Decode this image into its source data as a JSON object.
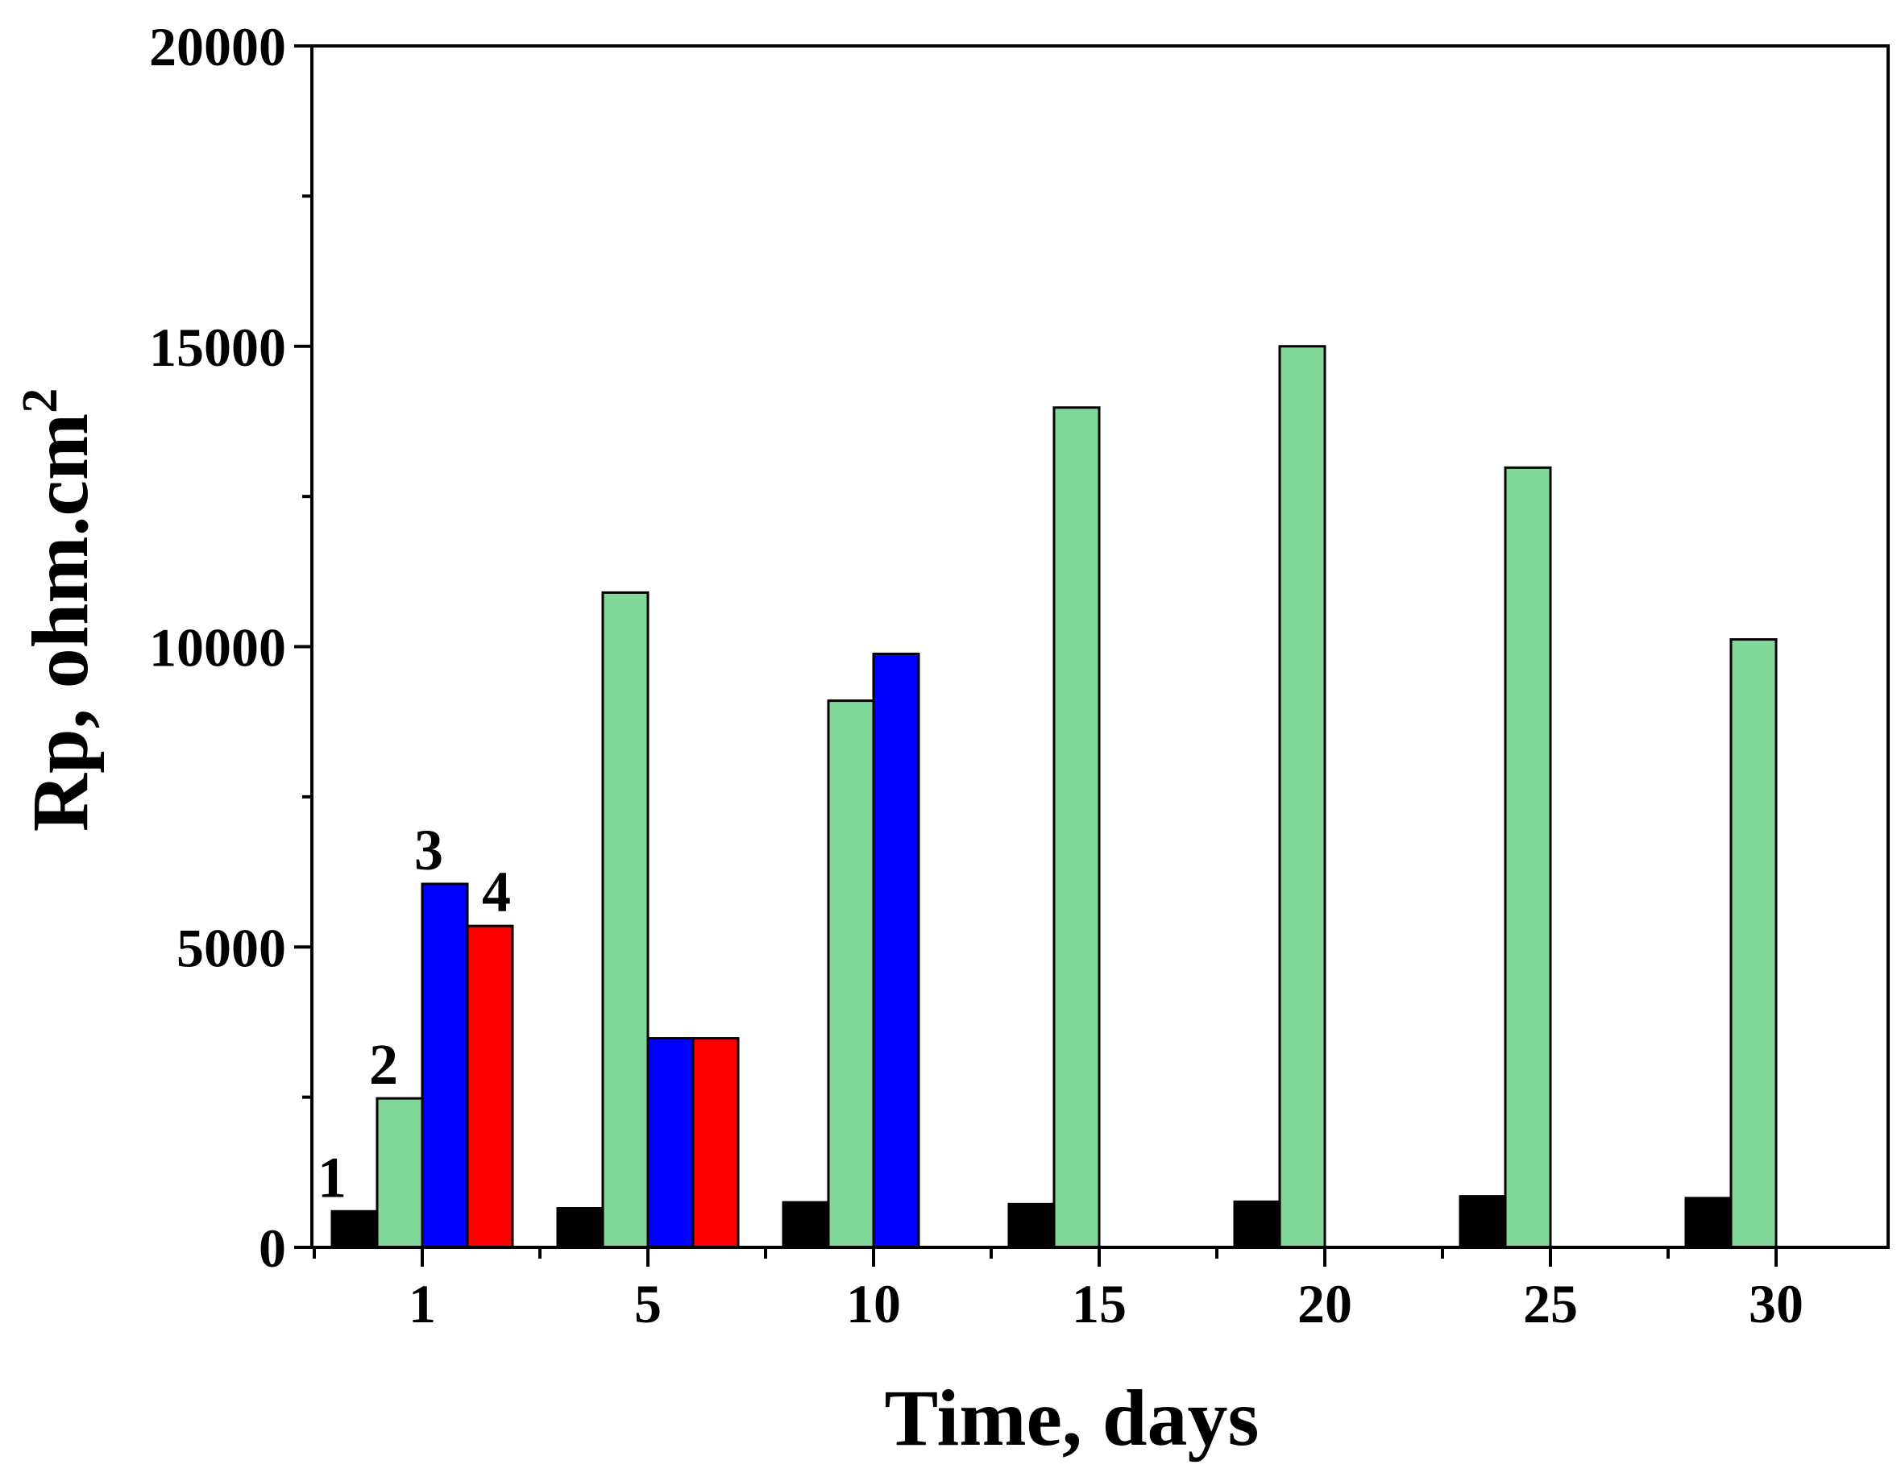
{
  "chart_data": {
    "type": "bar",
    "title": "",
    "xlabel": "Time, days",
    "ylabel": "Rp, ohm.cm",
    "ylabel_superscript": "2",
    "ylim": [
      0,
      20000
    ],
    "yticks": [
      "0",
      "5000",
      "10000",
      "15000",
      "20000"
    ],
    "categories": [
      "1",
      "5",
      "10",
      "15",
      "20",
      "25",
      "30"
    ],
    "series": [
      {
        "name": "1",
        "color": "#000000",
        "values": [
          600,
          650,
          750,
          720,
          760,
          850,
          820
        ]
      },
      {
        "name": "2",
        "color": "#80d99b",
        "values": [
          2480,
          10900,
          9100,
          13980,
          15000,
          12980,
          10120
        ]
      },
      {
        "name": "3",
        "color": "#0000ff",
        "values": [
          6050,
          3480,
          9880,
          null,
          null,
          null,
          null
        ]
      },
      {
        "name": "4",
        "color": "#ff0000",
        "values": [
          5350,
          3480,
          null,
          null,
          null,
          null,
          null
        ]
      }
    ],
    "series_annotations": [
      {
        "text": "1",
        "series": 0,
        "category": 0
      },
      {
        "text": "2",
        "series": 1,
        "category": 0
      },
      {
        "text": "3",
        "series": 2,
        "category": 0
      },
      {
        "text": "4",
        "series": 3,
        "category": 0
      }
    ]
  }
}
